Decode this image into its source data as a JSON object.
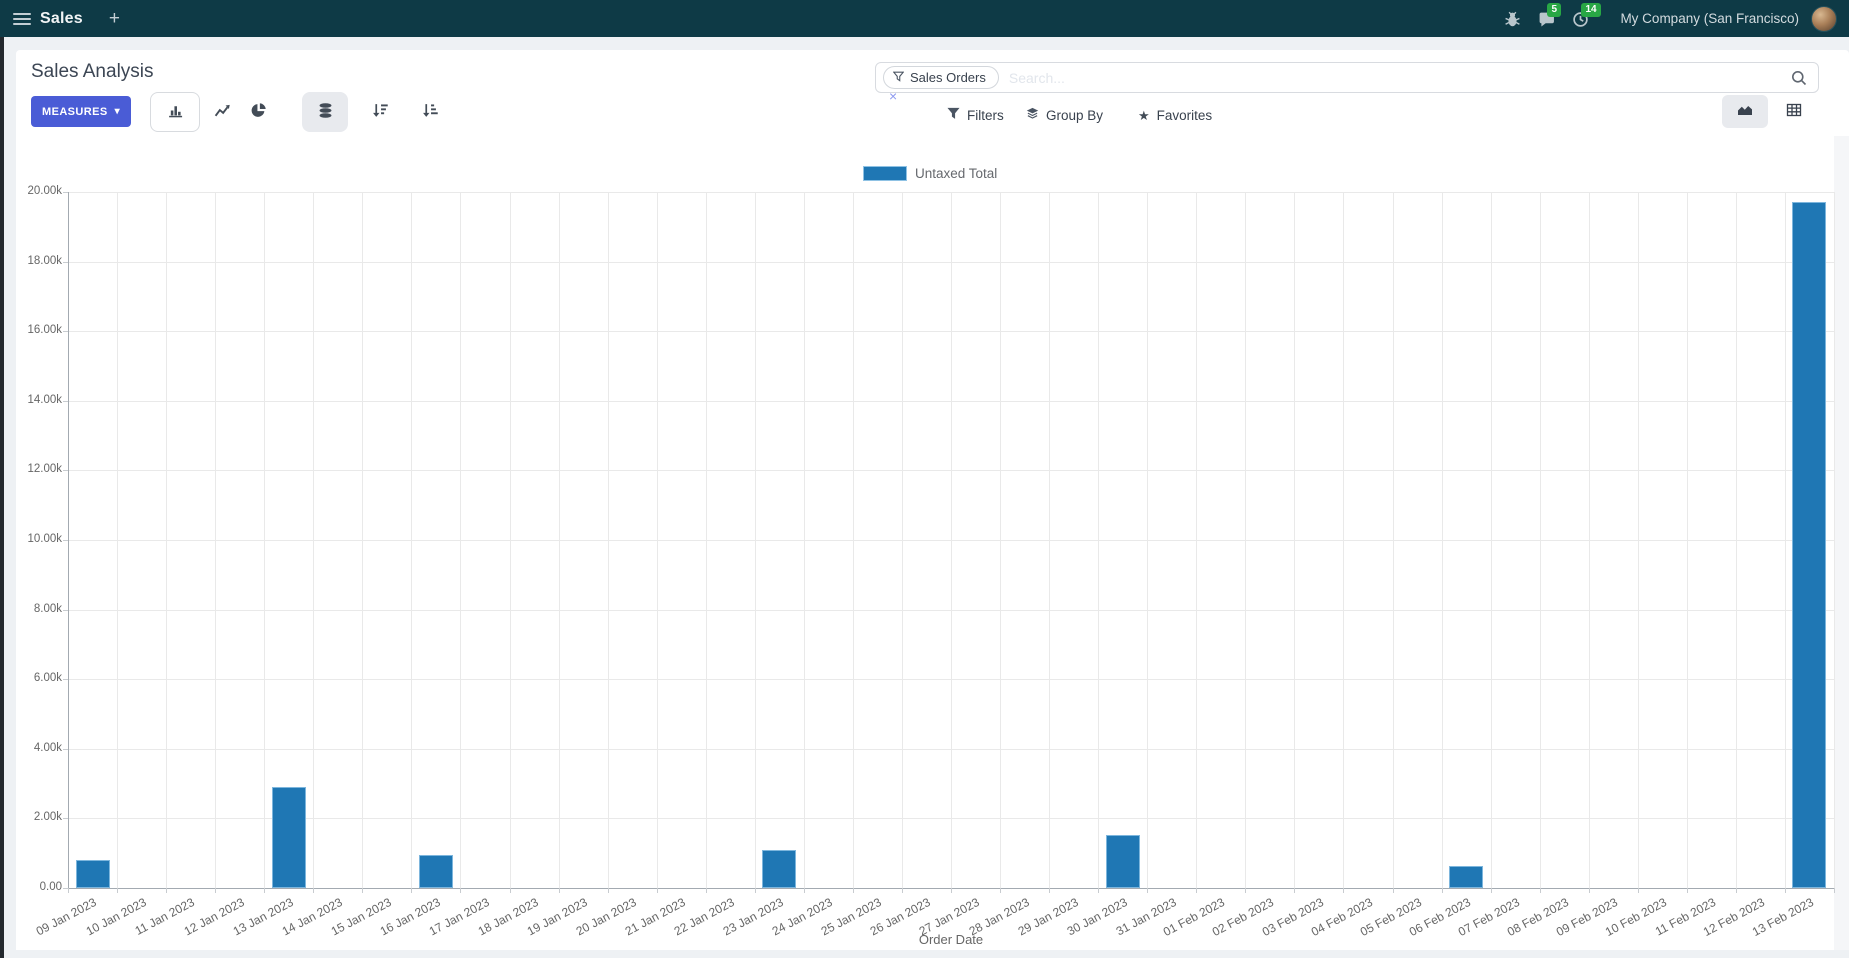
{
  "navbar": {
    "app_name": "Sales",
    "plus": "+",
    "messages_badge": "5",
    "activities_badge": "14",
    "company": "My Company (San Francisco)"
  },
  "control_panel": {
    "title": "Sales Analysis",
    "measures_label": "MEASURES",
    "search": {
      "facet": "Sales Orders",
      "placeholder": "Search...",
      "facet_remove": "×"
    },
    "filters_label": "Filters",
    "group_by_label": "Group By",
    "favorites_label": "Favorites"
  },
  "icons": {
    "star": "★",
    "caret_down": "▾",
    "close": "×",
    "plus": "+"
  },
  "chart_data": {
    "type": "bar",
    "title": "",
    "xlabel": "Order Date",
    "ylabel": "",
    "ylim": [
      0,
      20000
    ],
    "y_tick_step": 2000,
    "y_tick_labels": [
      "20.00k",
      "18.00k",
      "16.00k",
      "14.00k",
      "12.00k",
      "10.00k",
      "8.00k",
      "6.00k",
      "4.00k",
      "2.00k",
      "0.00"
    ],
    "grid": true,
    "legend_position": "top",
    "categories": [
      "09 Jan 2023",
      "10 Jan 2023",
      "11 Jan 2023",
      "12 Jan 2023",
      "13 Jan 2023",
      "14 Jan 2023",
      "15 Jan 2023",
      "16 Jan 2023",
      "17 Jan 2023",
      "18 Jan 2023",
      "19 Jan 2023",
      "20 Jan 2023",
      "21 Jan 2023",
      "22 Jan 2023",
      "23 Jan 2023",
      "24 Jan 2023",
      "25 Jan 2023",
      "26 Jan 2023",
      "27 Jan 2023",
      "28 Jan 2023",
      "29 Jan 2023",
      "30 Jan 2023",
      "31 Jan 2023",
      "01 Feb 2023",
      "02 Feb 2023",
      "03 Feb 2023",
      "04 Feb 2023",
      "05 Feb 2023",
      "06 Feb 2023",
      "07 Feb 2023",
      "08 Feb 2023",
      "09 Feb 2023",
      "10 Feb 2023",
      "11 Feb 2023",
      "12 Feb 2023",
      "13 Feb 2023"
    ],
    "series": [
      {
        "name": "Untaxed Total",
        "color": "#1f77b4",
        "values": [
          800,
          0,
          0,
          0,
          2900,
          0,
          0,
          950,
          0,
          0,
          0,
          0,
          0,
          0,
          1080,
          0,
          0,
          0,
          0,
          0,
          0,
          1520,
          0,
          0,
          0,
          0,
          0,
          0,
          630,
          0,
          0,
          0,
          0,
          0,
          0,
          19700
        ]
      }
    ]
  }
}
